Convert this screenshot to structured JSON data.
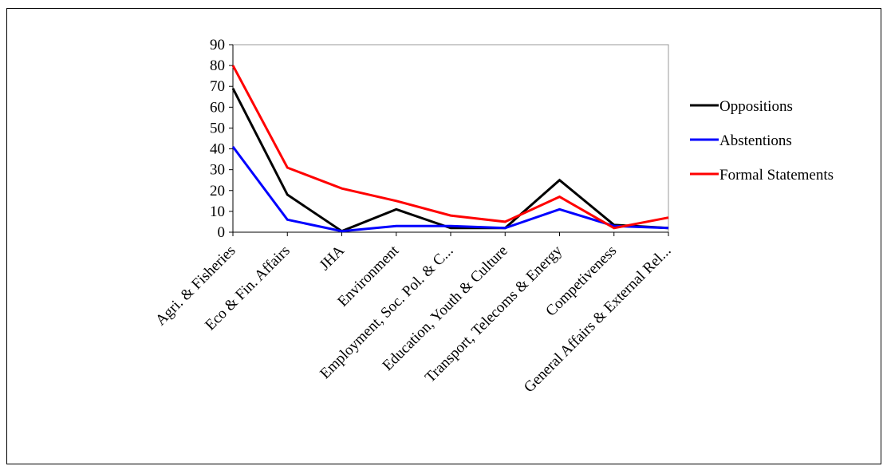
{
  "header_clip": "",
  "chart_data": {
    "type": "line",
    "title": "",
    "xlabel": "",
    "ylabel": "",
    "ylim": [
      0,
      90
    ],
    "yticks": [
      0,
      10,
      20,
      30,
      40,
      50,
      60,
      70,
      80,
      90
    ],
    "grid": false,
    "legend_position": "right",
    "categories": [
      "Agri. & Fisheries",
      "Eco & Fin. Affairs",
      "JHA",
      "Environment",
      "Employment, Soc. Pol. & C...",
      "Education, Youth & Culture",
      "Transport, Telecoms & Energy",
      "Competiveness",
      "General Affairs & External Rel..."
    ],
    "series": [
      {
        "name": "Oppositions",
        "color": "#000000",
        "values": [
          69,
          18,
          0.5,
          11,
          2,
          2,
          25,
          3.5,
          2
        ]
      },
      {
        "name": "Abstentions",
        "color": "#0000ff",
        "values": [
          41,
          6,
          0.5,
          3,
          3,
          2,
          11,
          3,
          2
        ]
      },
      {
        "name": "Formal Statements",
        "color": "#ff0000",
        "values": [
          80,
          31,
          21,
          15,
          8,
          5,
          17,
          2,
          7
        ]
      }
    ]
  }
}
